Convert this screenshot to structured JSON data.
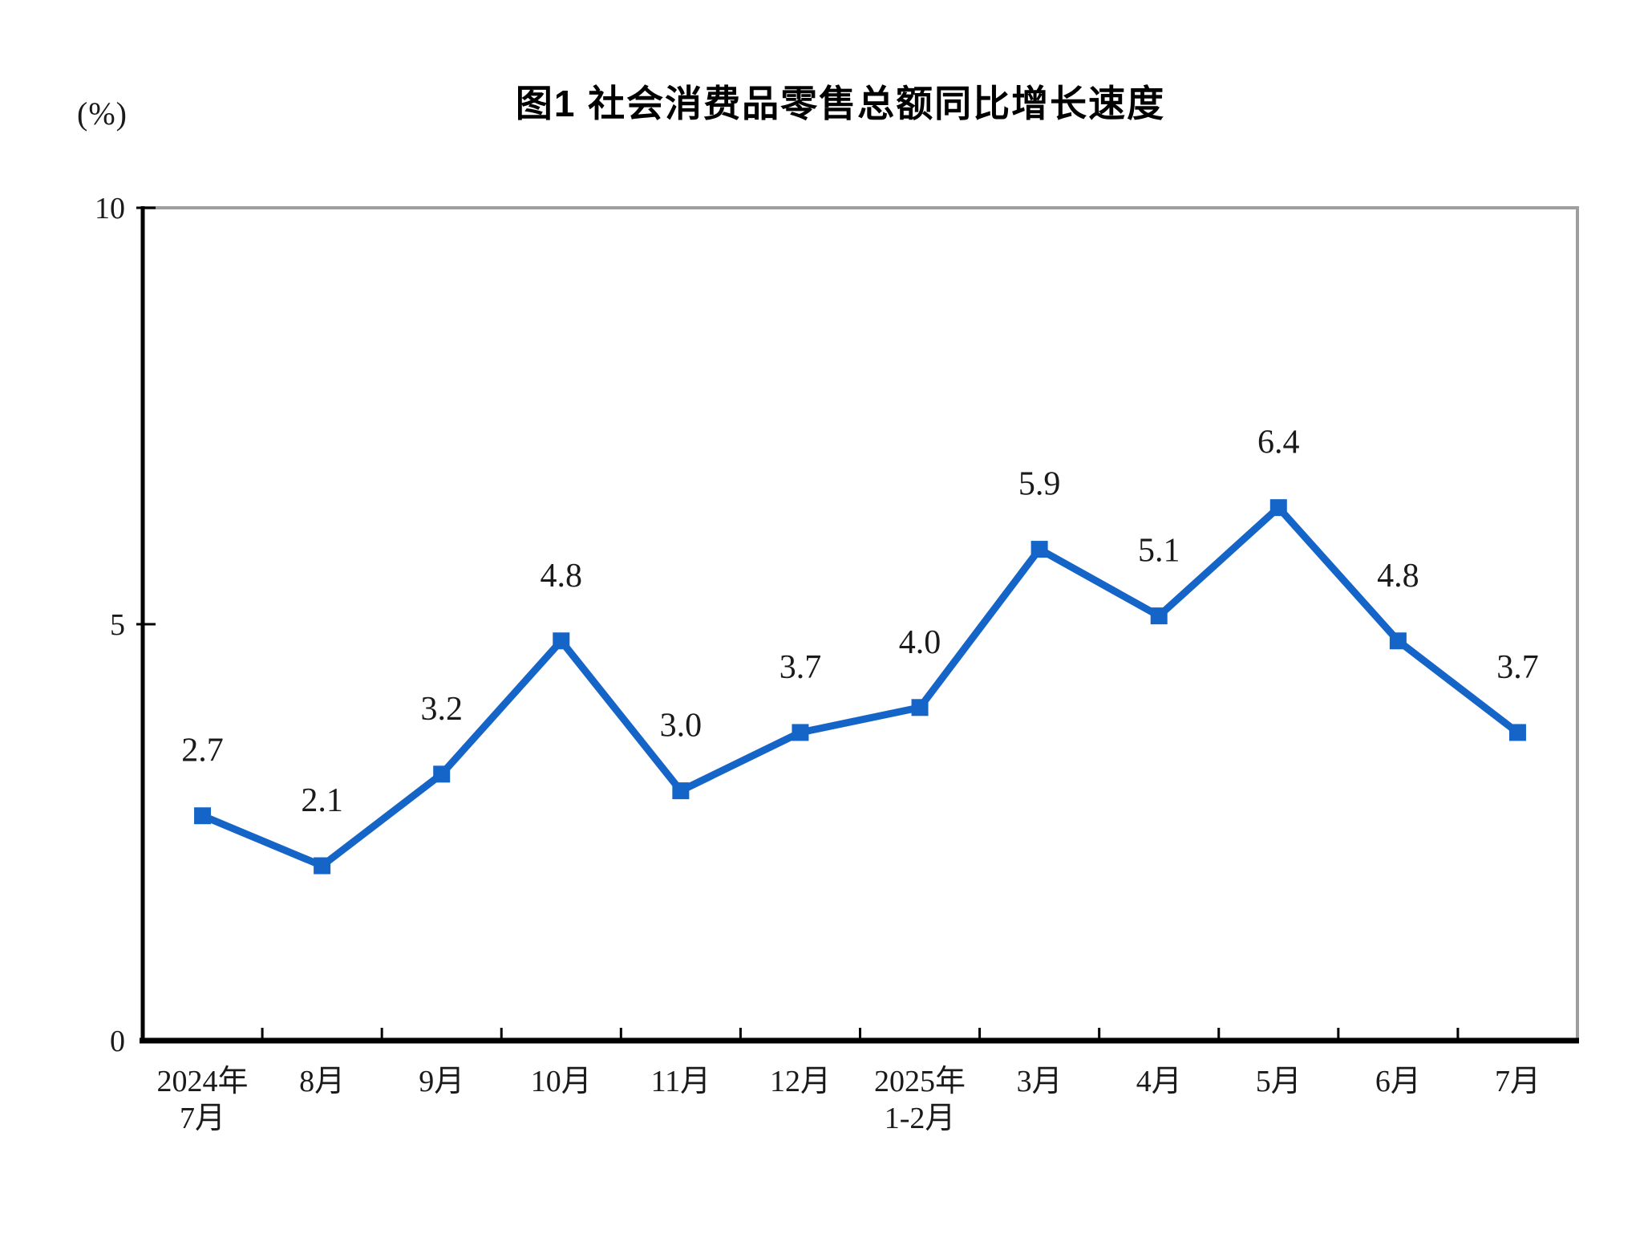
{
  "chart_data": {
    "type": "line",
    "title": "图1 社会消费品零售总额同比增长速度",
    "unit_label": "(%)",
    "categories": [
      [
        "2024年",
        "7月"
      ],
      [
        "8月"
      ],
      [
        "9月"
      ],
      [
        "10月"
      ],
      [
        "11月"
      ],
      [
        "12月"
      ],
      [
        "2025年",
        "1-2月"
      ],
      [
        "3月"
      ],
      [
        "4月"
      ],
      [
        "5月"
      ],
      [
        "6月"
      ],
      [
        "7月"
      ]
    ],
    "values": [
      2.7,
      2.1,
      3.2,
      4.8,
      3.0,
      3.7,
      4.0,
      5.9,
      5.1,
      6.4,
      4.8,
      3.7
    ],
    "data_labels": [
      "2.7",
      "2.1",
      "3.2",
      "4.8",
      "3.0",
      "3.7",
      "4.0",
      "5.9",
      "5.1",
      "6.4",
      "4.8",
      "3.7"
    ],
    "ylim": [
      0,
      10
    ],
    "yticks": [
      0,
      5,
      10
    ],
    "ytick_labels": [
      "0",
      "5",
      "10"
    ],
    "grid": false,
    "legend": "none",
    "marker": "square",
    "colors": {
      "line": "#1565C8",
      "marker": "#1565C8",
      "axis": "#000000",
      "frame": "#9E9E9E",
      "text": "#1a1a1a"
    }
  }
}
